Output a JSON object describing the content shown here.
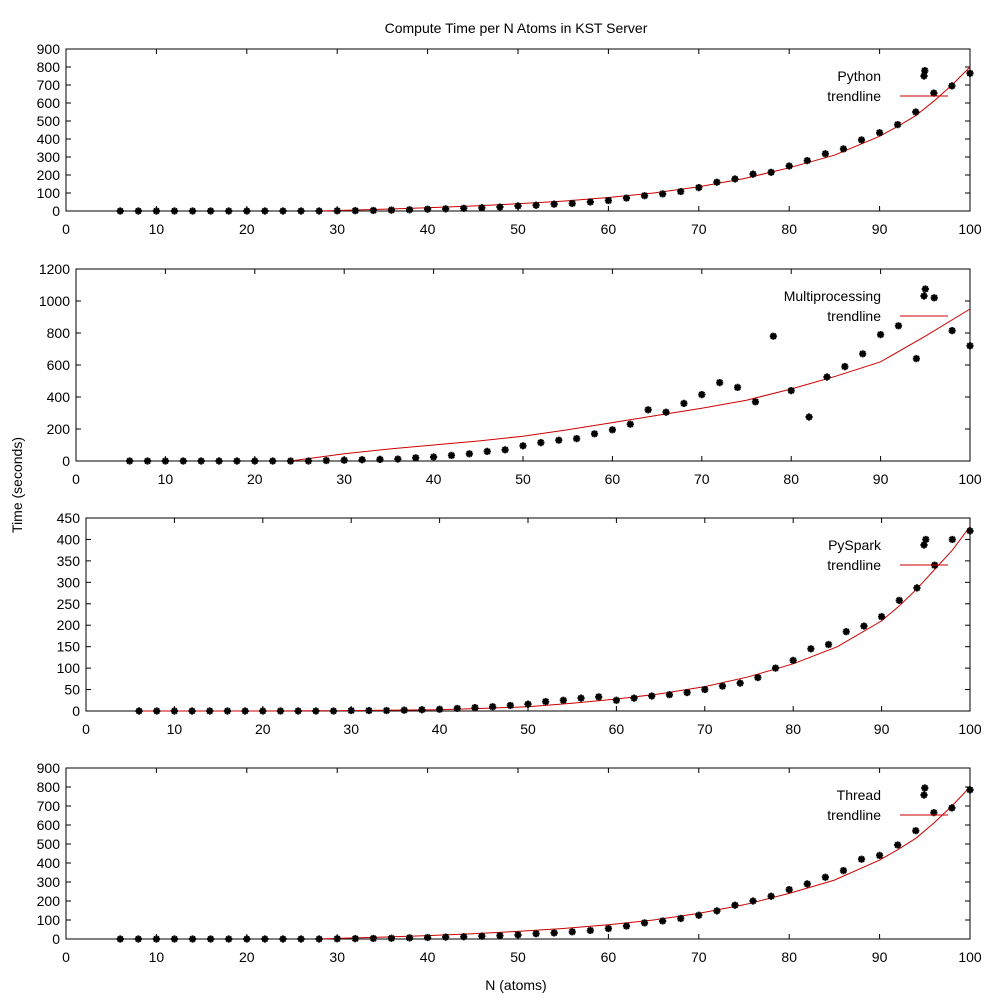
{
  "figure": {
    "title": "Compute Time per N Atoms in KST Server",
    "xlabel": "N (atoms)",
    "ylabel": "Time (seconds)"
  },
  "colors": {
    "points": "#000000",
    "trendline": "#cc0000",
    "frame": "#000000",
    "background": "#ffffff"
  },
  "chart_data": [
    {
      "type": "scatter",
      "panel": "python",
      "xlim": [
        0,
        100
      ],
      "ylim": [
        0,
        900
      ],
      "xticks": [
        0,
        10,
        20,
        30,
        40,
        50,
        60,
        70,
        80,
        90,
        100
      ],
      "yticks": [
        0,
        100,
        200,
        300,
        400,
        500,
        600,
        700,
        800,
        900
      ],
      "legend": "top-right",
      "grid": false,
      "series": [
        {
          "name": "Python",
          "kind": "points",
          "x": [
            6,
            8,
            10,
            12,
            14,
            16,
            18,
            20,
            22,
            24,
            26,
            28,
            30,
            32,
            34,
            36,
            38,
            40,
            42,
            44,
            46,
            48,
            50,
            52,
            54,
            56,
            58,
            60,
            62,
            64,
            66,
            68,
            70,
            72,
            74,
            76,
            78,
            80,
            82,
            84,
            86,
            88,
            90,
            92,
            94,
            95,
            96,
            98,
            100
          ],
          "y": [
            0,
            0,
            0,
            0,
            0,
            0,
            0,
            0,
            0,
            0,
            0,
            0,
            1,
            2,
            3,
            5,
            7,
            10,
            12,
            15,
            18,
            22,
            28,
            32,
            38,
            42,
            50,
            58,
            72,
            85,
            95,
            108,
            130,
            160,
            178,
            205,
            215,
            250,
            280,
            318,
            345,
            395,
            435,
            480,
            550,
            780,
            655,
            695,
            765
          ]
        },
        {
          "name": "trendline",
          "kind": "line",
          "x": [
            28,
            30,
            35,
            40,
            45,
            50,
            55,
            60,
            65,
            70,
            75,
            80,
            85,
            90,
            92,
            94,
            96,
            98,
            100
          ],
          "y": [
            0,
            3,
            10,
            18,
            28,
            40,
            55,
            75,
            100,
            135,
            180,
            240,
            310,
            415,
            470,
            530,
            610,
            700,
            800
          ]
        }
      ]
    },
    {
      "type": "scatter",
      "panel": "multiprocessing",
      "xlim": [
        0,
        100
      ],
      "ylim": [
        0,
        1200
      ],
      "xticks": [
        0,
        10,
        20,
        30,
        40,
        50,
        60,
        70,
        80,
        90,
        100
      ],
      "yticks": [
        0,
        200,
        400,
        600,
        800,
        1000,
        1200
      ],
      "legend": "top-right",
      "grid": false,
      "series": [
        {
          "name": "Multiprocessing",
          "kind": "points",
          "x": [
            6,
            8,
            10,
            12,
            14,
            16,
            18,
            20,
            22,
            24,
            26,
            28,
            30,
            32,
            34,
            36,
            38,
            40,
            42,
            44,
            46,
            48,
            50,
            52,
            54,
            56,
            58,
            60,
            62,
            64,
            66,
            68,
            70,
            72,
            74,
            76,
            78,
            80,
            82,
            84,
            86,
            88,
            90,
            92,
            94,
            95,
            96,
            98,
            100
          ],
          "y": [
            0,
            0,
            0,
            0,
            0,
            0,
            0,
            0,
            0,
            0,
            0,
            3,
            5,
            8,
            10,
            12,
            20,
            25,
            35,
            45,
            60,
            70,
            95,
            115,
            130,
            140,
            170,
            195,
            230,
            320,
            305,
            360,
            415,
            490,
            460,
            370,
            780,
            440,
            275,
            525,
            590,
            670,
            790,
            845,
            640,
            1075,
            1020,
            815,
            720
          ]
        },
        {
          "name": "trendline",
          "kind": "line",
          "x": [
            24,
            30,
            35,
            40,
            45,
            50,
            55,
            60,
            65,
            70,
            75,
            80,
            85,
            90,
            95,
            100
          ],
          "y": [
            0,
            45,
            75,
            100,
            125,
            155,
            195,
            240,
            285,
            330,
            380,
            450,
            530,
            620,
            780,
            950
          ]
        }
      ]
    },
    {
      "type": "scatter",
      "panel": "pyspark",
      "xlim": [
        0,
        100
      ],
      "ylim": [
        0,
        450
      ],
      "xticks": [
        0,
        10,
        20,
        30,
        40,
        50,
        60,
        70,
        80,
        90,
        100
      ],
      "yticks": [
        0,
        50,
        100,
        150,
        200,
        250,
        300,
        350,
        400,
        450
      ],
      "legend": "top-right",
      "grid": false,
      "series": [
        {
          "name": "PySpark",
          "kind": "points",
          "x": [
            6,
            8,
            10,
            12,
            14,
            16,
            18,
            20,
            22,
            24,
            26,
            28,
            30,
            32,
            34,
            36,
            38,
            40,
            42,
            44,
            46,
            48,
            50,
            52,
            54,
            56,
            58,
            60,
            62,
            64,
            66,
            68,
            70,
            72,
            74,
            76,
            78,
            80,
            82,
            84,
            86,
            88,
            90,
            92,
            94,
            95,
            96,
            98,
            100
          ],
          "y": [
            0,
            0,
            0,
            0,
            0,
            0,
            0,
            0,
            0,
            0,
            0,
            0,
            1,
            1,
            1,
            2,
            3,
            4,
            6,
            8,
            10,
            13,
            16,
            22,
            25,
            30,
            33,
            25,
            30,
            35,
            38,
            43,
            50,
            58,
            65,
            78,
            100,
            118,
            145,
            155,
            185,
            198,
            220,
            258,
            287,
            400,
            340,
            400,
            420
          ]
        },
        {
          "name": "trendline",
          "kind": "line",
          "x": [
            6,
            20,
            30,
            40,
            45,
            50,
            55,
            60,
            65,
            70,
            75,
            80,
            85,
            90,
            92,
            94,
            96,
            98,
            100
          ],
          "y": [
            0,
            0,
            1,
            3,
            6,
            10,
            18,
            28,
            40,
            57,
            80,
            110,
            150,
            210,
            245,
            285,
            330,
            375,
            430
          ]
        }
      ]
    },
    {
      "type": "scatter",
      "panel": "thread",
      "xlim": [
        0,
        100
      ],
      "ylim": [
        0,
        900
      ],
      "xticks": [
        0,
        10,
        20,
        30,
        40,
        50,
        60,
        70,
        80,
        90,
        100
      ],
      "yticks": [
        0,
        100,
        200,
        300,
        400,
        500,
        600,
        700,
        800,
        900
      ],
      "legend": "top-right",
      "grid": false,
      "series": [
        {
          "name": "Thread",
          "kind": "points",
          "x": [
            6,
            8,
            10,
            12,
            14,
            16,
            18,
            20,
            22,
            24,
            26,
            28,
            30,
            32,
            34,
            36,
            38,
            40,
            42,
            44,
            46,
            48,
            50,
            52,
            54,
            56,
            58,
            60,
            62,
            64,
            66,
            68,
            70,
            72,
            74,
            76,
            78,
            80,
            82,
            84,
            86,
            88,
            90,
            92,
            94,
            95,
            96,
            98,
            100
          ],
          "y": [
            0,
            0,
            0,
            0,
            0,
            0,
            0,
            0,
            0,
            0,
            0,
            0,
            1,
            2,
            3,
            4,
            6,
            8,
            10,
            12,
            15,
            18,
            22,
            28,
            32,
            38,
            45,
            55,
            68,
            85,
            95,
            108,
            125,
            148,
            178,
            200,
            225,
            260,
            290,
            325,
            360,
            420,
            440,
            495,
            570,
            795,
            665,
            690,
            785
          ]
        },
        {
          "name": "trendline",
          "kind": "line",
          "x": [
            28,
            30,
            35,
            40,
            45,
            50,
            55,
            60,
            65,
            70,
            75,
            80,
            85,
            90,
            92,
            94,
            96,
            98,
            100
          ],
          "y": [
            0,
            3,
            10,
            18,
            28,
            40,
            55,
            75,
            100,
            135,
            180,
            240,
            310,
            415,
            470,
            530,
            610,
            700,
            800
          ]
        }
      ]
    }
  ]
}
